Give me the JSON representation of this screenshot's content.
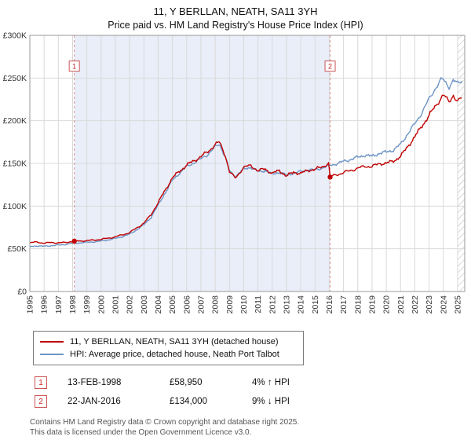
{
  "title": "11, Y BERLLAN, NEATH, SA11 3YH",
  "subtitle": "Price paid vs. HM Land Registry's House Price Index (HPI)",
  "chart_data": {
    "type": "line",
    "title": "11, Y BERLLAN, NEATH, SA11 3YH — Price paid vs. HPI",
    "xlabel": "",
    "ylabel": "",
    "xlim": [
      1995,
      2025.5
    ],
    "ylim": [
      0,
      300000
    ],
    "grid": true,
    "legend_position": "bottom",
    "x_label_years": [
      1995,
      1996,
      1997,
      1998,
      1999,
      2000,
      2001,
      2002,
      2003,
      2004,
      2005,
      2006,
      2007,
      2008,
      2009,
      2010,
      2011,
      2012,
      2013,
      2014,
      2015,
      2016,
      2017,
      2018,
      2019,
      2020,
      2021,
      2022,
      2023,
      2024,
      2025
    ],
    "yticks": [
      0,
      50000,
      100000,
      150000,
      200000,
      250000,
      300000
    ],
    "ytick_labels": [
      "£0",
      "£50K",
      "£100K",
      "£150K",
      "£200K",
      "£250K",
      "£300K"
    ],
    "grid_color": "#d9d9d9",
    "shade_color": "#e9eef9",
    "event_line_color": "#e09090",
    "shaded_region": [
      1998.12,
      2016.06
    ],
    "hatch_start": 2025.0,
    "series": [
      {
        "name": "11, Y BERLLAN, NEATH, SA11 3YH (detached house)",
        "color": "#c00000",
        "x": [
          1995.0,
          1995.5,
          1996.0,
          1996.5,
          1997.0,
          1997.5,
          1998.12,
          1999.0,
          2000.0,
          2001.0,
          2002.0,
          2003.0,
          2003.5,
          2004.0,
          2004.5,
          2005.0,
          2005.5,
          2006.0,
          2006.5,
          2007.0,
          2007.5,
          2008.0,
          2008.3,
          2008.7,
          2009.0,
          2009.4,
          2010.0,
          2010.5,
          2011.0,
          2011.5,
          2012.0,
          2012.5,
          2013.0,
          2013.5,
          2014.0,
          2014.5,
          2015.0,
          2015.5,
          2015.95,
          2016.06,
          2016.5,
          2017.0,
          2017.5,
          2018.0,
          2018.5,
          2019.0,
          2019.5,
          2020.0,
          2020.5,
          2021.0,
          2021.5,
          2022.0,
          2022.5,
          2023.0,
          2023.4,
          2023.8,
          2024.0,
          2024.4,
          2024.7,
          2025.0,
          2025.3
        ],
        "values": [
          57000,
          58000,
          56500,
          57500,
          56800,
          57500,
          58950,
          59500,
          61000,
          64000,
          69000,
          80000,
          90000,
          104000,
          119000,
          133000,
          141000,
          148000,
          153000,
          158000,
          164000,
          172000,
          175000,
          160000,
          140000,
          133000,
          145000,
          148000,
          141000,
          144000,
          138000,
          142000,
          135000,
          140000,
          138000,
          142000,
          143000,
          146000,
          150000,
          134000,
          137000,
          139000,
          142000,
          144000,
          147000,
          146000,
          150000,
          150000,
          153000,
          158000,
          170000,
          181000,
          194000,
          206000,
          216000,
          226000,
          230000,
          222000,
          230000,
          222000,
          227000
        ]
      },
      {
        "name": "HPI: Average price, detached house, Neath Port Talbot",
        "color": "#6f95c5",
        "x": [
          1995.0,
          1995.5,
          1996.0,
          1996.5,
          1997.0,
          1997.5,
          1998.12,
          1999.0,
          2000.0,
          2001.0,
          2002.0,
          2003.0,
          2003.5,
          2004.0,
          2004.5,
          2005.0,
          2005.5,
          2006.0,
          2006.5,
          2007.0,
          2007.5,
          2008.0,
          2008.3,
          2008.7,
          2009.0,
          2009.4,
          2010.0,
          2010.5,
          2011.0,
          2011.5,
          2012.0,
          2012.5,
          2013.0,
          2013.5,
          2014.0,
          2014.5,
          2015.0,
          2015.5,
          2016.0,
          2016.5,
          2017.0,
          2017.5,
          2018.0,
          2018.5,
          2019.0,
          2019.5,
          2020.0,
          2020.5,
          2021.0,
          2021.5,
          2022.0,
          2022.5,
          2023.0,
          2023.4,
          2023.8,
          2024.0,
          2024.4,
          2024.7,
          2025.0,
          2025.3
        ],
        "values": [
          52500,
          53500,
          52800,
          53800,
          54200,
          55200,
          56700,
          57500,
          59000,
          62000,
          67000,
          78000,
          87000,
          101000,
          116000,
          130000,
          139000,
          146000,
          151000,
          155000,
          161000,
          169000,
          173000,
          158000,
          141000,
          135000,
          143000,
          146000,
          140000,
          142000,
          137000,
          140000,
          136000,
          139000,
          140000,
          143000,
          142000,
          145000,
          147000,
          150000,
          152000,
          155000,
          157000,
          160000,
          158000,
          162000,
          163000,
          166000,
          172000,
          185000,
          196000,
          210000,
          225000,
          237000,
          247000,
          248000,
          240000,
          247000,
          243000,
          248000
        ]
      }
    ],
    "markers": [
      {
        "label": "1",
        "x": 1998.12,
        "y": 58950
      },
      {
        "label": "2",
        "x": 2016.06,
        "y": 134000
      }
    ]
  },
  "legend": [
    {
      "label": "11, Y BERLLAN, NEATH, SA11 3YH (detached house)"
    },
    {
      "label": "HPI: Average price, detached house, Neath Port Talbot"
    }
  ],
  "events": [
    {
      "num": "1",
      "date": "13-FEB-1998",
      "price": "£58,950",
      "hpi": "4% ↑ HPI"
    },
    {
      "num": "2",
      "date": "22-JAN-2016",
      "price": "£134,000",
      "hpi": "9% ↓ HPI"
    }
  ],
  "footer": [
    "Contains HM Land Registry data © Crown copyright and database right 2025.",
    "This data is licensed under the Open Government Licence v3.0."
  ]
}
